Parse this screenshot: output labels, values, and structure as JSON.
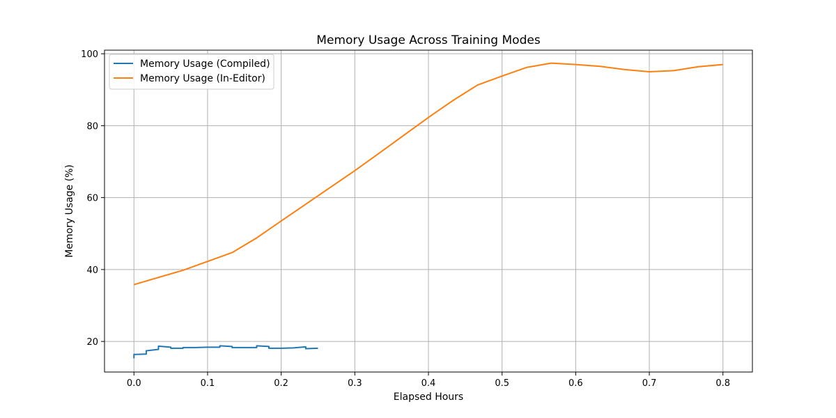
{
  "chart_data": {
    "type": "line",
    "title": "Memory Usage Across Training Modes",
    "xlabel": "Elapsed Hours",
    "ylabel": "Memory Usage (%)",
    "xlim": [
      -0.04,
      0.84
    ],
    "ylim": [
      11.5,
      101.0
    ],
    "xticks": [
      0.0,
      0.1,
      0.2,
      0.3,
      0.4,
      0.5,
      0.6,
      0.7,
      0.8
    ],
    "xtick_labels": [
      "0.0",
      "0.1",
      "0.2",
      "0.3",
      "0.4",
      "0.5",
      "0.6",
      "0.7",
      "0.8"
    ],
    "yticks": [
      20,
      40,
      60,
      80,
      100
    ],
    "ytick_labels": [
      "20",
      "40",
      "60",
      "80",
      "100"
    ],
    "grid": true,
    "legend_position": "top-left",
    "series": [
      {
        "name": "Memory Usage (Compiled)",
        "color": "#1f77b4",
        "x": [
          0.0,
          0.0,
          0.0017,
          0.0167,
          0.0167,
          0.0333,
          0.0333,
          0.05,
          0.05,
          0.0667,
          0.0667,
          0.0833,
          0.1,
          0.1167,
          0.1167,
          0.1333,
          0.1333,
          0.15,
          0.1667,
          0.1667,
          0.1833,
          0.1833,
          0.2,
          0.2167,
          0.2333,
          0.2333,
          0.25
        ],
        "y": [
          15.3,
          16.4,
          16.4,
          16.5,
          17.4,
          17.8,
          18.7,
          18.4,
          18.1,
          18.1,
          18.3,
          18.3,
          18.4,
          18.4,
          18.8,
          18.6,
          18.3,
          18.3,
          18.3,
          18.8,
          18.6,
          18.1,
          18.1,
          18.2,
          18.5,
          18.0,
          18.1
        ]
      },
      {
        "name": "Memory Usage (In-Editor)",
        "color": "#ff7f0e",
        "x": [
          0.0,
          0.0667,
          0.1333,
          0.1667,
          0.2,
          0.3,
          0.3333,
          0.4,
          0.4333,
          0.4667,
          0.5,
          0.5333,
          0.5667,
          0.6,
          0.6333,
          0.6667,
          0.7,
          0.7333,
          0.7667,
          0.8
        ],
        "y": [
          35.8,
          39.8,
          44.7,
          48.8,
          53.5,
          67.5,
          72.4,
          82.3,
          87.0,
          91.3,
          93.8,
          96.2,
          97.4,
          97.0,
          96.5,
          95.6,
          95.0,
          95.3,
          96.4,
          97.0
        ]
      }
    ]
  }
}
